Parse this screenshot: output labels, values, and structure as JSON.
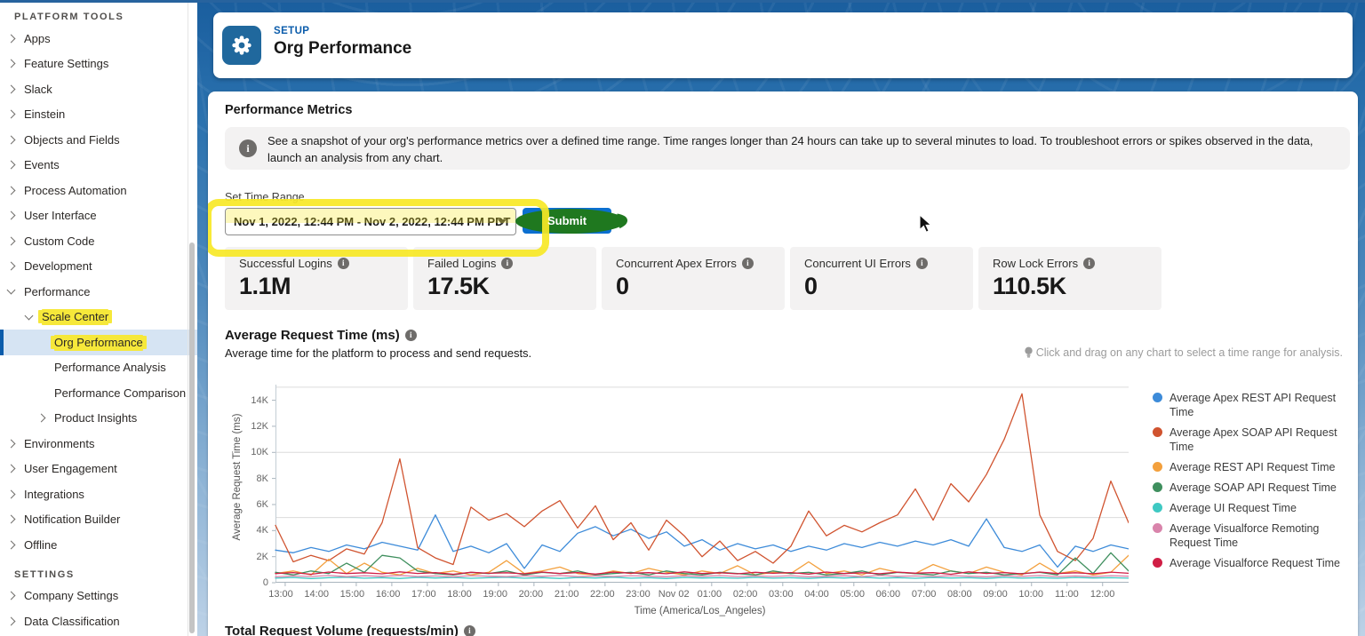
{
  "annotations": {
    "highlight_color": "#f6e83a",
    "marker_green": "#1f781f"
  },
  "sidebar": {
    "platform_section_label": "PLATFORM TOOLS",
    "settings_section_label": "SETTINGS",
    "platform_items": [
      {
        "label": "Apps",
        "chevron": "right",
        "level": 0
      },
      {
        "label": "Feature Settings",
        "chevron": "right",
        "level": 0
      },
      {
        "label": "Slack",
        "chevron": "right",
        "level": 0
      },
      {
        "label": "Einstein",
        "chevron": "right",
        "level": 0
      },
      {
        "label": "Objects and Fields",
        "chevron": "right",
        "level": 0
      },
      {
        "label": "Events",
        "chevron": "right",
        "level": 0
      },
      {
        "label": "Process Automation",
        "chevron": "right",
        "level": 0
      },
      {
        "label": "User Interface",
        "chevron": "right",
        "level": 0
      },
      {
        "label": "Custom Code",
        "chevron": "right",
        "level": 0
      },
      {
        "label": "Development",
        "chevron": "right",
        "level": 0
      },
      {
        "label": "Performance",
        "chevron": "down",
        "level": 0
      },
      {
        "label": "Scale Center",
        "chevron": "down",
        "level": 1,
        "highlighted": true
      },
      {
        "label": "Org Performance",
        "chevron": "none",
        "level": 2,
        "selected": true,
        "highlighted": true
      },
      {
        "label": "Performance Analysis",
        "chevron": "none",
        "level": 2
      },
      {
        "label": "Performance Comparison",
        "chevron": "none",
        "level": 2
      },
      {
        "label": "Product Insights",
        "chevron": "right",
        "level": 2
      },
      {
        "label": "Environments",
        "chevron": "right",
        "level": 0
      },
      {
        "label": "User Engagement",
        "chevron": "right",
        "level": 0
      },
      {
        "label": "Integrations",
        "chevron": "right",
        "level": 0
      },
      {
        "label": "Notification Builder",
        "chevron": "right",
        "level": 0
      },
      {
        "label": "Offline",
        "chevron": "right",
        "level": 0
      }
    ],
    "settings_items": [
      {
        "label": "Company Settings",
        "chevron": "right",
        "level": 0
      },
      {
        "label": "Data Classification",
        "chevron": "right",
        "level": 0
      }
    ]
  },
  "header": {
    "eyebrow": "SETUP",
    "title": "Org Performance",
    "icon": "gear-icon"
  },
  "main": {
    "section_title": "Performance Metrics",
    "info_banner": "See a snapshot of your org's performance metrics over a defined time range. Time ranges longer than 24 hours can take up to several minutes to load. To troubleshoot errors or spikes observed in the data, launch an analysis from any chart.",
    "time_range": {
      "label": "Set Time Range",
      "value": "Nov 1, 2022, 12:44 PM - Nov 2, 2022, 12:44 PM PDT",
      "submit_label": "Submit"
    },
    "metrics": [
      {
        "label": "Successful Logins",
        "value": "1.1M"
      },
      {
        "label": "Failed Logins",
        "value": "17.5K"
      },
      {
        "label": "Concurrent Apex Errors",
        "value": "0"
      },
      {
        "label": "Concurrent UI Errors",
        "value": "0"
      },
      {
        "label": "Row Lock Errors",
        "value": "110.5K"
      }
    ],
    "chart_section": {
      "title": "Average Request Time (ms)",
      "subtitle": "Average time for the platform to process and send requests.",
      "hint": "Click and drag on any chart to select a time range for analysis."
    },
    "next_section_title": "Total Request Volume (requests/min)"
  },
  "chart_data": {
    "type": "line",
    "title": "Average Request Time (ms)",
    "xlabel": "Time (America/Los_Angeles)",
    "ylabel": "Average Request Time (ms)",
    "x_tick_labels": [
      "13:00",
      "14:00",
      "15:00",
      "16:00",
      "17:00",
      "18:00",
      "19:00",
      "20:00",
      "21:00",
      "22:00",
      "23:00",
      "Nov 02",
      "01:00",
      "02:00",
      "03:00",
      "04:00",
      "05:00",
      "06:00",
      "07:00",
      "08:00",
      "09:00",
      "10:00",
      "11:00",
      "12:00"
    ],
    "y_tick_labels": [
      "0",
      "2K",
      "4K",
      "6K",
      "8K",
      "10K",
      "12K",
      "14K"
    ],
    "y_tick_values": [
      0,
      2000,
      4000,
      6000,
      8000,
      10000,
      12000,
      14000
    ],
    "ylim": [
      0,
      15200
    ],
    "gridline_values": [
      5000,
      10000,
      15000
    ],
    "sample_interval_minutes": 30,
    "series": [
      {
        "name": "Average Apex REST API Request Time",
        "color": "#3d8bd9",
        "values": [
          2500,
          2300,
          2700,
          2400,
          2900,
          2600,
          3100,
          2800,
          2500,
          5200,
          2400,
          2800,
          2300,
          3000,
          1100,
          2900,
          2400,
          3800,
          4300,
          3600,
          4100,
          3400,
          3900,
          2800,
          3300,
          2500,
          3000,
          2600,
          2900,
          2400,
          2800,
          2500,
          3000,
          2700,
          3100,
          2800,
          3200,
          2900,
          3300,
          2800,
          4900,
          2700,
          2400,
          2900,
          1200,
          2800,
          2400,
          2900,
          2600
        ]
      },
      {
        "name": "Average Apex SOAP API Request Time",
        "color": "#d0532f",
        "values": [
          4400,
          1600,
          2100,
          1700,
          2600,
          2200,
          4600,
          9500,
          2700,
          1900,
          1400,
          5800,
          4800,
          5300,
          4300,
          5500,
          6300,
          4200,
          5900,
          3300,
          4600,
          2500,
          4800,
          3600,
          2000,
          3200,
          1700,
          2400,
          1500,
          2800,
          5500,
          3600,
          4400,
          3900,
          4600,
          5200,
          7200,
          4800,
          7600,
          6200,
          8300,
          11000,
          14500,
          5200,
          2400,
          1700,
          3400,
          7800,
          4600
        ]
      },
      {
        "name": "Average REST API Request Time",
        "color": "#f3a03d",
        "values": [
          700,
          900,
          600,
          1800,
          700,
          1500,
          800,
          600,
          1100,
          700,
          900,
          600,
          800,
          1700,
          700,
          900,
          1200,
          700,
          600,
          900,
          700,
          1100,
          800,
          600,
          900,
          700,
          1300,
          600,
          800,
          700,
          1600,
          700,
          900,
          600,
          1100,
          800,
          700,
          1400,
          900,
          700,
          1200,
          800,
          600,
          1500,
          700,
          900,
          600,
          800,
          2100
        ]
      },
      {
        "name": "Average SOAP API Request Time",
        "color": "#3f8f5e",
        "values": [
          800,
          600,
          900,
          700,
          1500,
          800,
          2100,
          1900,
          900,
          700,
          600,
          800,
          700,
          900,
          600,
          800,
          700,
          900,
          600,
          700,
          800,
          600,
          900,
          700,
          600,
          800,
          700,
          600,
          900,
          700,
          800,
          600,
          700,
          900,
          600,
          800,
          700,
          600,
          900,
          700,
          800,
          600,
          700,
          800,
          600,
          1900,
          700,
          2300,
          900
        ]
      },
      {
        "name": "Average UI Request Time",
        "color": "#3fc9c3",
        "values": [
          350,
          400,
          320,
          380,
          420,
          350,
          390,
          330,
          410,
          360,
          400,
          340,
          380,
          420,
          350,
          390,
          330,
          400,
          360,
          420,
          350,
          380,
          320,
          400,
          360,
          390,
          340,
          410,
          350,
          380,
          330,
          400,
          360,
          420,
          350,
          390,
          340,
          400,
          360,
          380,
          330,
          410,
          350,
          390,
          340,
          400,
          360,
          380,
          350
        ]
      },
      {
        "name": "Average Visualforce Remoting Request Time",
        "color": "#d984ab",
        "values": [
          450,
          520,
          480,
          550,
          470,
          530,
          490,
          560,
          480,
          520,
          460,
          540,
          500,
          470,
          530,
          490,
          550,
          470,
          520,
          480,
          540,
          500,
          460,
          530,
          490,
          550,
          470,
          520,
          480,
          540,
          460,
          500,
          530,
          470,
          550,
          490,
          520,
          480,
          540,
          500,
          460,
          530,
          490,
          550,
          470,
          520,
          480,
          540,
          500
        ]
      },
      {
        "name": "Average Visualforce Request Time",
        "color": "#d01e45",
        "values": [
          700,
          780,
          650,
          820,
          700,
          760,
          680,
          830,
          710,
          770,
          650,
          800,
          720,
          760,
          680,
          820,
          700,
          780,
          660,
          810,
          730,
          770,
          690,
          830,
          700,
          760,
          680,
          800,
          720,
          780,
          660,
          820,
          700,
          760,
          690,
          810,
          730,
          770,
          650,
          830,
          710,
          780,
          680,
          820,
          700,
          760,
          690,
          810,
          720
        ]
      }
    ]
  }
}
